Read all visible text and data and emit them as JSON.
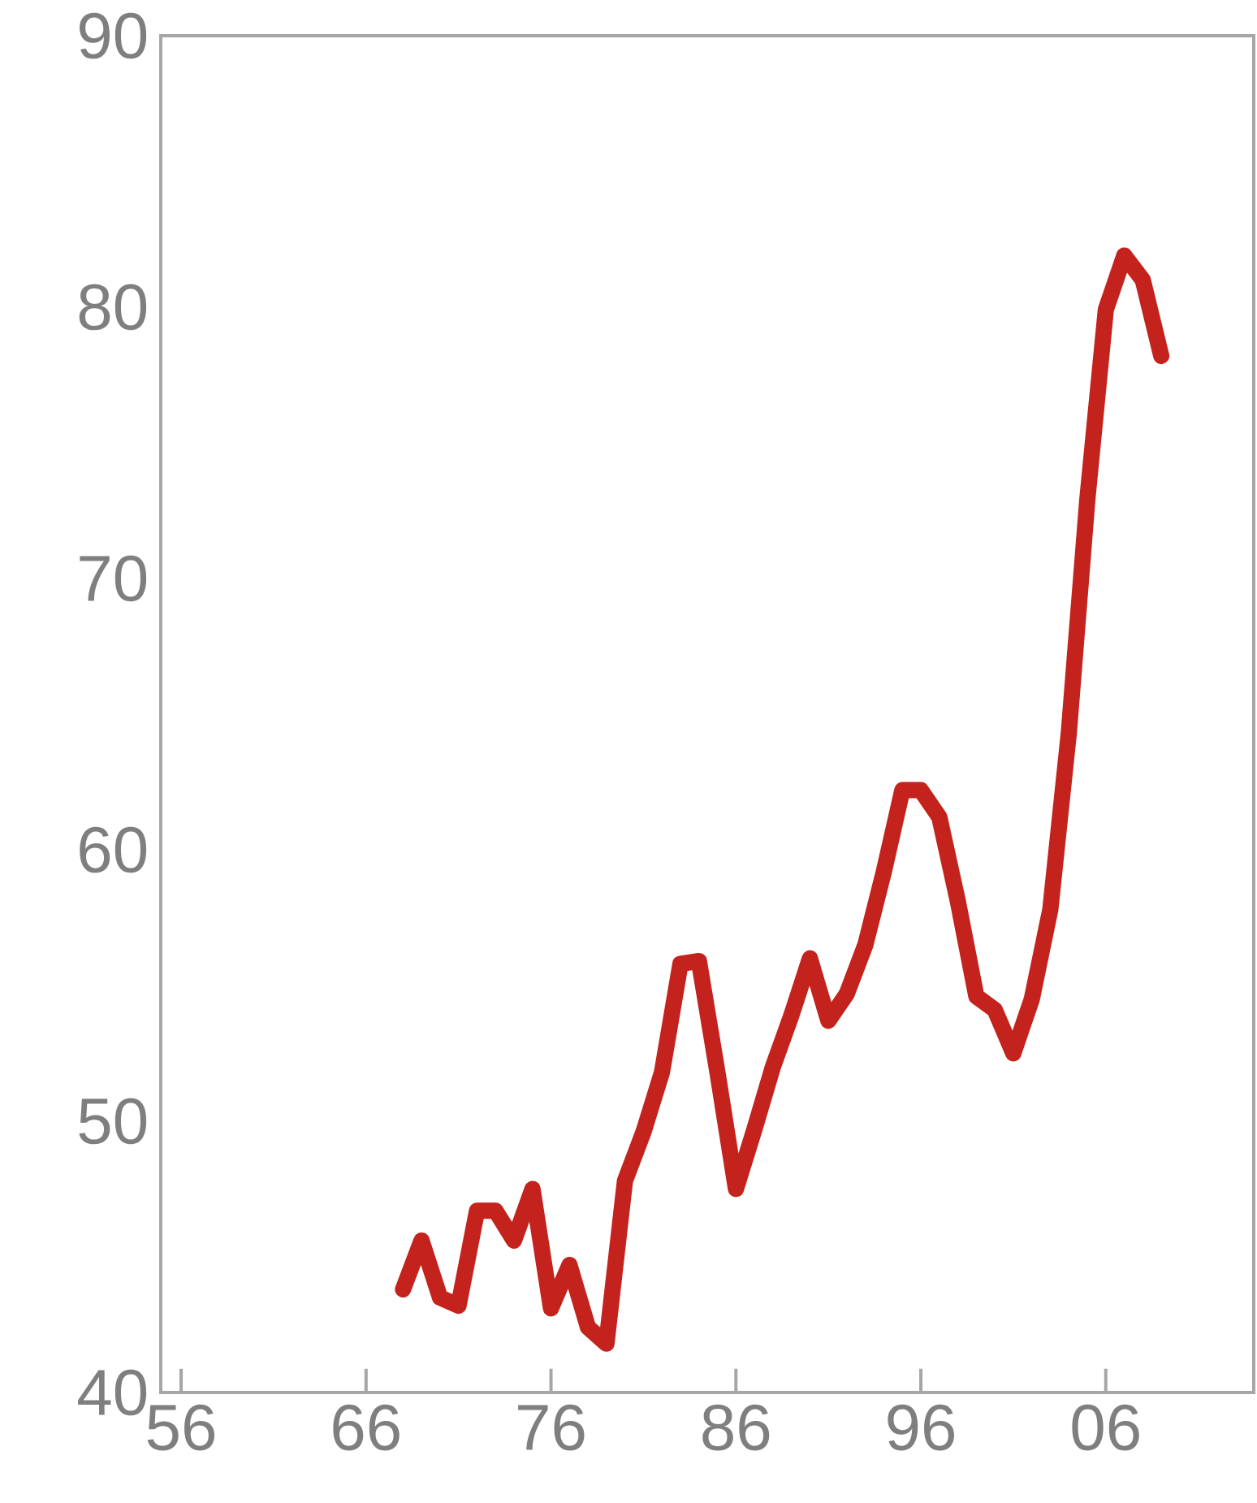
{
  "chart_data": {
    "type": "line",
    "x": [
      1968,
      1969,
      1970,
      1971,
      1972,
      1973,
      1974,
      1975,
      1976,
      1977,
      1978,
      1979,
      1980,
      1981,
      1982,
      1983,
      1984,
      1985,
      1986,
      1987,
      1988,
      1989,
      1990,
      1991,
      1992,
      1993,
      1994,
      1995,
      1996,
      1997,
      1998,
      1999,
      2000,
      2001,
      2002,
      2003,
      2004,
      2005,
      2006,
      2007,
      2008,
      2009
    ],
    "series": [
      {
        "color": "#c4221c",
        "values": [
          43.8,
          45.6,
          43.5,
          43.2,
          46.7,
          46.7,
          45.6,
          47.5,
          43.1,
          44.7,
          42.4,
          41.8,
          47.8,
          49.6,
          51.8,
          55.8,
          55.9,
          51.8,
          47.5,
          49.7,
          52.0,
          53.9,
          56.0,
          53.7,
          54.7,
          56.5,
          59.2,
          62.2,
          62.2,
          61.2,
          58.1,
          54.6,
          54.1,
          52.5,
          54.5,
          57.8,
          64.3,
          72.9,
          79.9,
          81.9,
          81.0,
          78.2
        ]
      }
    ],
    "xlim": [
      1954.9,
      2014
    ],
    "xticks": [
      {
        "value": 1956,
        "label": "56"
      },
      {
        "value": 1966,
        "label": "66"
      },
      {
        "value": 1976,
        "label": "76"
      },
      {
        "value": 1986,
        "label": "86"
      },
      {
        "value": 1996,
        "label": "96"
      },
      {
        "value": 2006,
        "label": "06"
      }
    ],
    "ylim": [
      40,
      90
    ],
    "yticks": [
      40,
      50,
      60,
      70,
      80,
      90
    ],
    "grid": false,
    "marker": "none",
    "line_style": "solid"
  }
}
